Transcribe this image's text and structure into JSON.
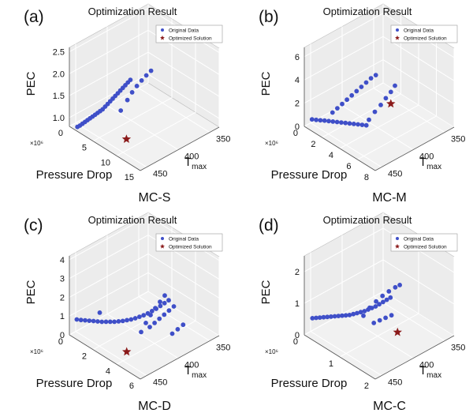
{
  "figure_title": "Optimization Result",
  "chart_data": [
    {
      "type": "scatter",
      "panel_label": "(a)",
      "title": "Optimization Result",
      "case_label": "MC-S",
      "zlabel": "PEC",
      "xlabel": "Pressure Drop",
      "x_scale_label": "×10⁶",
      "ylabel": "T",
      "ylabel_sub": "max",
      "x_ticks": [
        "0",
        "5",
        "10",
        "15"
      ],
      "y_ticks": [
        "350",
        "400",
        "450"
      ],
      "z_ticks": [
        "1.0",
        "1.5",
        "2.0",
        "2.5"
      ],
      "xlim": [
        0,
        15
      ],
      "ylim": [
        335,
        460
      ],
      "zlim": [
        0.8,
        2.6
      ],
      "z_tick_values": [
        1.0,
        1.5,
        2.0,
        2.5
      ],
      "legend": [
        "Original Data",
        "Optimized Solution"
      ],
      "original_data": [
        {
          "x": 0.5,
          "y": 451,
          "z": 0.75
        },
        {
          "x": 0.9,
          "y": 450,
          "z": 0.8
        },
        {
          "x": 1.3,
          "y": 449,
          "z": 0.86
        },
        {
          "x": 1.7,
          "y": 448,
          "z": 0.92
        },
        {
          "x": 2.1,
          "y": 447,
          "z": 0.98
        },
        {
          "x": 2.5,
          "y": 446,
          "z": 1.04
        },
        {
          "x": 2.9,
          "y": 445,
          "z": 1.1
        },
        {
          "x": 3.3,
          "y": 444,
          "z": 1.16
        },
        {
          "x": 3.7,
          "y": 443,
          "z": 1.22
        },
        {
          "x": 4.1,
          "y": 442,
          "z": 1.28
        },
        {
          "x": 4.5,
          "y": 441,
          "z": 1.34
        },
        {
          "x": 4.9,
          "y": 440,
          "z": 1.42
        },
        {
          "x": 5.3,
          "y": 439,
          "z": 1.5
        },
        {
          "x": 5.7,
          "y": 438,
          "z": 1.58
        },
        {
          "x": 6.1,
          "y": 437,
          "z": 1.66
        },
        {
          "x": 6.5,
          "y": 436,
          "z": 1.74
        },
        {
          "x": 6.9,
          "y": 435,
          "z": 1.82
        },
        {
          "x": 7.3,
          "y": 434,
          "z": 1.9
        },
        {
          "x": 7.7,
          "y": 433,
          "z": 1.98
        },
        {
          "x": 8.1,
          "y": 432,
          "z": 2.06
        },
        {
          "x": 8.5,
          "y": 431,
          "z": 2.14
        },
        {
          "x": 8.9,
          "y": 430,
          "z": 2.22
        },
        {
          "x": 6.2,
          "y": 425,
          "z": 1.3
        },
        {
          "x": 5.6,
          "y": 410,
          "z": 1.38
        },
        {
          "x": 5.0,
          "y": 398,
          "z": 1.42
        },
        {
          "x": 4.4,
          "y": 386,
          "z": 1.43
        },
        {
          "x": 3.8,
          "y": 374,
          "z": 1.42
        },
        {
          "x": 3.2,
          "y": 362,
          "z": 1.4
        },
        {
          "x": 2.6,
          "y": 350,
          "z": 1.37
        }
      ],
      "optimized_solution": {
        "x": 7.8,
        "y": 428,
        "z": 0.78
      }
    },
    {
      "type": "scatter",
      "panel_label": "(b)",
      "title": "Optimization Result",
      "case_label": "MC-M",
      "zlabel": "PEC",
      "xlabel": "Pressure Drop",
      "x_scale_label": "×10⁶",
      "ylabel": "T",
      "ylabel_sub": "max",
      "x_ticks": [
        "0",
        "2",
        "4",
        "6",
        "8"
      ],
      "y_ticks": [
        "350",
        "400",
        "450"
      ],
      "z_ticks": [
        "0",
        "2",
        "4",
        "6"
      ],
      "xlim": [
        0,
        8
      ],
      "ylim": [
        335,
        460
      ],
      "zlim": [
        0,
        6.8
      ],
      "z_tick_values": [
        0,
        2,
        4,
        6
      ],
      "legend": [
        "Original Data",
        "Optimized Solution"
      ],
      "original_data": [
        {
          "x": 0.3,
          "y": 452,
          "z": 0.5
        },
        {
          "x": 0.7,
          "y": 451,
          "z": 0.62
        },
        {
          "x": 1.1,
          "y": 450,
          "z": 0.75
        },
        {
          "x": 1.5,
          "y": 449,
          "z": 0.88
        },
        {
          "x": 1.9,
          "y": 448,
          "z": 1.0
        },
        {
          "x": 2.3,
          "y": 447,
          "z": 1.12
        },
        {
          "x": 2.7,
          "y": 446,
          "z": 1.24
        },
        {
          "x": 3.1,
          "y": 445,
          "z": 1.36
        },
        {
          "x": 3.5,
          "y": 444,
          "z": 1.48
        },
        {
          "x": 3.9,
          "y": 443,
          "z": 1.6
        },
        {
          "x": 4.3,
          "y": 442,
          "z": 1.72
        },
        {
          "x": 4.7,
          "y": 441,
          "z": 1.84
        },
        {
          "x": 5.1,
          "y": 440,
          "z": 1.96
        },
        {
          "x": 5.5,
          "y": 439,
          "z": 2.08
        },
        {
          "x": 2.4,
          "y": 449,
          "z": 2.0
        },
        {
          "x": 2.8,
          "y": 447,
          "z": 2.5
        },
        {
          "x": 3.2,
          "y": 445,
          "z": 3.0
        },
        {
          "x": 3.6,
          "y": 443,
          "z": 3.5
        },
        {
          "x": 4.0,
          "y": 441,
          "z": 4.0
        },
        {
          "x": 4.4,
          "y": 439,
          "z": 4.5
        },
        {
          "x": 4.8,
          "y": 437,
          "z": 5.0
        },
        {
          "x": 5.2,
          "y": 435,
          "z": 5.5
        },
        {
          "x": 5.6,
          "y": 433,
          "z": 6.0
        },
        {
          "x": 6.0,
          "y": 431,
          "z": 6.4
        },
        {
          "x": 4.8,
          "y": 425,
          "z": 1.8
        },
        {
          "x": 4.4,
          "y": 410,
          "z": 1.85
        },
        {
          "x": 4.0,
          "y": 395,
          "z": 1.8
        },
        {
          "x": 3.5,
          "y": 380,
          "z": 1.7
        },
        {
          "x": 3.0,
          "y": 365,
          "z": 1.55
        },
        {
          "x": 2.4,
          "y": 350,
          "z": 1.35
        }
      ],
      "optimized_solution": {
        "x": 6.2,
        "y": 410,
        "z": 3.4
      }
    },
    {
      "type": "scatter",
      "panel_label": "(c)",
      "title": "Optimization Result",
      "case_label": "MC-D",
      "zlabel": "PEC",
      "xlabel": "Pressure Drop",
      "x_scale_label": "×10⁶",
      "ylabel": "T",
      "ylabel_sub": "max",
      "x_ticks": [
        "0",
        "2",
        "4",
        "6"
      ],
      "y_ticks": [
        "350",
        "400",
        "450"
      ],
      "z_ticks": [
        "0",
        "1",
        "2",
        "3",
        "4"
      ],
      "xlim": [
        0,
        6
      ],
      "ylim": [
        335,
        460
      ],
      "zlim": [
        0,
        4.2
      ],
      "z_tick_values": [
        0,
        1,
        2,
        3,
        4
      ],
      "legend": [
        "Original Data",
        "Optimized Solution"
      ],
      "original_data": [
        {
          "x": 0.2,
          "y": 452,
          "z": 0.75
        },
        {
          "x": 0.5,
          "y": 451,
          "z": 0.82
        },
        {
          "x": 0.8,
          "y": 450,
          "z": 0.9
        },
        {
          "x": 1.1,
          "y": 449,
          "z": 0.98
        },
        {
          "x": 1.4,
          "y": 448,
          "z": 1.06
        },
        {
          "x": 1.7,
          "y": 447,
          "z": 1.14
        },
        {
          "x": 2.0,
          "y": 446,
          "z": 1.22
        },
        {
          "x": 2.3,
          "y": 445,
          "z": 1.32
        },
        {
          "x": 2.6,
          "y": 444,
          "z": 1.42
        },
        {
          "x": 2.9,
          "y": 443,
          "z": 1.52
        },
        {
          "x": 3.2,
          "y": 442,
          "z": 1.64
        },
        {
          "x": 3.5,
          "y": 441,
          "z": 1.76
        },
        {
          "x": 3.8,
          "y": 440,
          "z": 1.9
        },
        {
          "x": 4.1,
          "y": 439,
          "z": 2.04
        },
        {
          "x": 4.4,
          "y": 438,
          "z": 2.2
        },
        {
          "x": 4.7,
          "y": 437,
          "z": 2.38
        },
        {
          "x": 5.0,
          "y": 436,
          "z": 2.56
        },
        {
          "x": 5.3,
          "y": 435,
          "z": 2.76
        },
        {
          "x": 5.6,
          "y": 434,
          "z": 2.98
        },
        {
          "x": 5.9,
          "y": 433,
          "z": 3.2
        },
        {
          "x": 6.2,
          "y": 432,
          "z": 3.45
        },
        {
          "x": 6.5,
          "y": 431,
          "z": 3.7
        },
        {
          "x": 6.8,
          "y": 430,
          "z": 3.95
        },
        {
          "x": 5.2,
          "y": 430,
          "z": 1.9
        },
        {
          "x": 5.5,
          "y": 428,
          "z": 2.2
        },
        {
          "x": 5.8,
          "y": 426,
          "z": 2.5
        },
        {
          "x": 6.1,
          "y": 424,
          "z": 2.8
        },
        {
          "x": 6.4,
          "y": 422,
          "z": 3.1
        },
        {
          "x": 6.7,
          "y": 420,
          "z": 3.4
        },
        {
          "x": 6.3,
          "y": 415,
          "z": 1.7
        },
        {
          "x": 6.6,
          "y": 412,
          "z": 2.0
        },
        {
          "x": 6.9,
          "y": 409,
          "z": 2.3
        },
        {
          "x": 4.2,
          "y": 425,
          "z": 1.15
        },
        {
          "x": 3.8,
          "y": 410,
          "z": 1.2
        },
        {
          "x": 3.4,
          "y": 395,
          "z": 1.18
        },
        {
          "x": 3.0,
          "y": 380,
          "z": 1.12
        },
        {
          "x": 2.6,
          "y": 365,
          "z": 1.02
        },
        {
          "x": 2.2,
          "y": 350,
          "z": 0.92
        },
        {
          "x": 1.5,
          "y": 440,
          "z": 1.4
        }
      ],
      "optimized_solution": {
        "x": 4.1,
        "y": 446,
        "z": 0.45
      }
    },
    {
      "type": "scatter",
      "panel_label": "(d)",
      "title": "Optimization Result",
      "case_label": "MC-C",
      "zlabel": "PEC",
      "xlabel": "Pressure Drop",
      "x_scale_label": "×10⁶",
      "ylabel": "T",
      "ylabel_sub": "max",
      "x_ticks": [
        "0",
        "1",
        "2"
      ],
      "y_ticks": [
        "350",
        "400",
        "450"
      ],
      "z_ticks": [
        "0",
        "1",
        "2"
      ],
      "xlim": [
        0,
        2.3
      ],
      "ylim": [
        335,
        460
      ],
      "zlim": [
        0,
        2.5
      ],
      "z_tick_values": [
        0,
        1,
        2
      ],
      "legend": [
        "Original Data",
        "Optimized Solution"
      ],
      "original_data": [
        {
          "x": 0.1,
          "y": 452,
          "z": 0.5
        },
        {
          "x": 0.2,
          "y": 451,
          "z": 0.56
        },
        {
          "x": 0.3,
          "y": 450,
          "z": 0.62
        },
        {
          "x": 0.4,
          "y": 449,
          "z": 0.68
        },
        {
          "x": 0.5,
          "y": 448,
          "z": 0.74
        },
        {
          "x": 0.6,
          "y": 447,
          "z": 0.8
        },
        {
          "x": 0.7,
          "y": 446,
          "z": 0.86
        },
        {
          "x": 0.8,
          "y": 445,
          "z": 0.92
        },
        {
          "x": 0.9,
          "y": 444,
          "z": 0.98
        },
        {
          "x": 1.0,
          "y": 443,
          "z": 1.04
        },
        {
          "x": 1.1,
          "y": 442,
          "z": 1.1
        },
        {
          "x": 1.2,
          "y": 441,
          "z": 1.18
        },
        {
          "x": 1.3,
          "y": 440,
          "z": 1.26
        },
        {
          "x": 1.4,
          "y": 439,
          "z": 1.34
        },
        {
          "x": 1.5,
          "y": 438,
          "z": 1.42
        },
        {
          "x": 1.6,
          "y": 437,
          "z": 1.52
        },
        {
          "x": 1.7,
          "y": 436,
          "z": 1.62
        },
        {
          "x": 1.8,
          "y": 435,
          "z": 1.72
        },
        {
          "x": 1.9,
          "y": 434,
          "z": 1.84
        },
        {
          "x": 2.0,
          "y": 433,
          "z": 1.96
        },
        {
          "x": 2.1,
          "y": 432,
          "z": 2.08
        },
        {
          "x": 2.2,
          "y": 431,
          "z": 2.2
        },
        {
          "x": 1.6,
          "y": 428,
          "z": 1.0
        },
        {
          "x": 1.75,
          "y": 426,
          "z": 1.15
        },
        {
          "x": 1.9,
          "y": 424,
          "z": 1.3
        },
        {
          "x": 2.05,
          "y": 422,
          "z": 1.45
        },
        {
          "x": 1.2,
          "y": 425,
          "z": 0.95
        },
        {
          "x": 1.1,
          "y": 410,
          "z": 0.98
        },
        {
          "x": 1.0,
          "y": 395,
          "z": 0.95
        },
        {
          "x": 0.9,
          "y": 380,
          "z": 0.9
        },
        {
          "x": 0.8,
          "y": 365,
          "z": 0.82
        },
        {
          "x": 0.7,
          "y": 350,
          "z": 0.72
        },
        {
          "x": 0.6,
          "y": 338,
          "z": 0.6
        }
      ],
      "optimized_solution": {
        "x": 2.0,
        "y": 410,
        "z": 0.75
      }
    }
  ],
  "colors": {
    "original": "#3f4fc8",
    "optimized": "#8b1a1a",
    "pane": "#ececec",
    "grid": "#ffffff",
    "axis": "#555555",
    "text": "#111111"
  }
}
